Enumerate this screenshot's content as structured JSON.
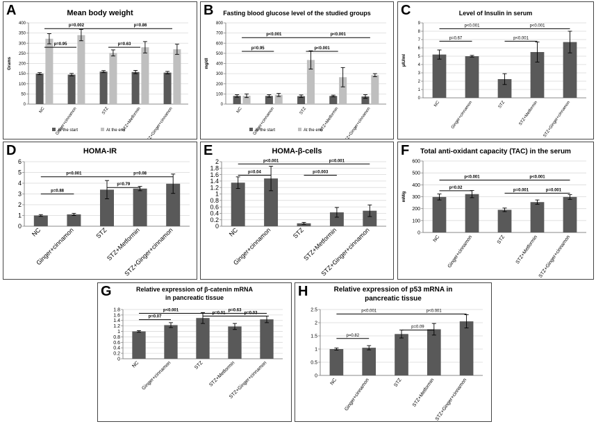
{
  "chart_data": [
    {
      "id": "A",
      "letter": "A",
      "type": "bar",
      "title": "Mean body weight",
      "ylabel": "Grams",
      "categories": [
        "NC",
        "Ginger+cinnamon",
        "STZ",
        "STZ+Metformin",
        "STZ+Ginger+cinnamon"
      ],
      "series": [
        {
          "name": "At the start",
          "color": "#595959",
          "values": [
            150,
            145,
            160,
            158,
            155
          ],
          "errors": [
            5,
            6,
            5,
            8,
            6
          ]
        },
        {
          "name": "At the end",
          "color": "#bfbfbf",
          "values": [
            322,
            340,
            252,
            280,
            270
          ],
          "errors": [
            25,
            28,
            15,
            28,
            25
          ]
        }
      ],
      "ylim": [
        0,
        400
      ],
      "yticks": [
        0,
        50,
        100,
        150,
        200,
        250,
        300,
        350,
        400
      ],
      "legend": [
        "At the start",
        "At the end"
      ],
      "annotations": [
        {
          "text": "p=0.002",
          "from": 0,
          "to": 2,
          "y": 372
        },
        {
          "text": "p=0.86",
          "from": 2,
          "to": 4,
          "y": 372
        },
        {
          "text": "p=0.95",
          "from": 0,
          "to": 1,
          "y": 280
        },
        {
          "text": "p=0.63",
          "from": 2,
          "to": 3,
          "y": 280
        }
      ]
    },
    {
      "id": "B",
      "letter": "B",
      "type": "bar",
      "title": "Fasting blood glucose level of the studied groups",
      "ylabel": "mg/dl",
      "categories": [
        "NC",
        "Ginger+cinnamon",
        "STZ",
        "STZ+Metformin",
        "STZ+Ginger+cinnamon"
      ],
      "series": [
        {
          "name": "At the start",
          "color": "#595959",
          "values": [
            80,
            80,
            78,
            80,
            75
          ],
          "errors": [
            12,
            12,
            12,
            8,
            18
          ]
        },
        {
          "name": "At the end",
          "color": "#bfbfbf",
          "values": [
            82,
            90,
            435,
            265,
            285
          ],
          "errors": [
            18,
            15,
            90,
            95,
            15
          ]
        }
      ],
      "ylim": [
        0,
        800
      ],
      "yticks": [
        0,
        100,
        200,
        300,
        400,
        500,
        600,
        700,
        800
      ],
      "legend": [
        "At the start",
        "At the end"
      ],
      "annotations": [
        {
          "text": "p<0.001",
          "from": 0,
          "to": 2,
          "y": 655
        },
        {
          "text": "p<0.001",
          "from": 2,
          "to": 4,
          "y": 655
        },
        {
          "text": "p=0.95",
          "from": 0,
          "to": 1,
          "y": 520
        },
        {
          "text": "p<0.001",
          "from": 2,
          "to": 3,
          "y": 520
        }
      ]
    },
    {
      "id": "C",
      "letter": "C",
      "type": "bar",
      "title": "Level of Insulin in serum",
      "ylabel": "µIU/ml",
      "categories": [
        "NC",
        "Ginger+cinnamon",
        "STZ",
        "STZ+Metformin",
        "STZ+Ginger+cinnamon"
      ],
      "series": [
        {
          "name": "Insulin",
          "color": "#595959",
          "values": [
            5.2,
            5.0,
            2.25,
            5.5,
            6.7
          ],
          "errors": [
            0.55,
            0.1,
            0.65,
            1.2,
            1.3
          ]
        }
      ],
      "ylim": [
        0,
        9
      ],
      "yticks": [
        0,
        1,
        2,
        3,
        4,
        5,
        6,
        7,
        8,
        9
      ],
      "legend": [],
      "annotations": [
        {
          "text": "p<0.001",
          "from": 0,
          "to": 2,
          "y": 8.3
        },
        {
          "text": "p<0.001",
          "from": 2,
          "to": 4,
          "y": 8.3
        },
        {
          "text": "p=0.67",
          "from": 0,
          "to": 1,
          "y": 6.8
        },
        {
          "text": "p<0.001",
          "from": 2,
          "to": 3,
          "y": 6.8
        }
      ]
    },
    {
      "id": "D",
      "letter": "D",
      "type": "bar",
      "title": "HOMA-IR",
      "ylabel": "",
      "categories": [
        "NC",
        "Ginger+cinnamon",
        "STZ",
        "STZ+Metformin",
        "STZ+Ginger+cinnamon"
      ],
      "series": [
        {
          "name": "HOMA-IR",
          "color": "#595959",
          "values": [
            1.0,
            1.1,
            3.4,
            3.5,
            3.95
          ],
          "errors": [
            0.08,
            0.1,
            0.85,
            0.2,
            0.9
          ]
        }
      ],
      "ylim": [
        0,
        6
      ],
      "yticks": [
        0,
        1,
        2,
        3,
        4,
        5,
        6
      ],
      "legend": [],
      "annotations": [
        {
          "text": "p<0.001",
          "from": 0,
          "to": 2,
          "y": 4.6
        },
        {
          "text": "p=0.08",
          "from": 2,
          "to": 4,
          "y": 4.6
        },
        {
          "text": "p=0.88",
          "from": 0,
          "to": 1,
          "y": 3.0
        },
        {
          "text": "p=0.79",
          "from": 2,
          "to": 3,
          "y": 3.6
        }
      ]
    },
    {
      "id": "E",
      "letter": "E",
      "type": "bar",
      "title": "HOMA-β-cells",
      "ylabel": "",
      "categories": [
        "NC",
        "Ginger+cinnamon",
        "STZ",
        "STZ+Metformin",
        "STZ+Ginger+cinnamon"
      ],
      "series": [
        {
          "name": "HOMA-β-cells",
          "color": "#595959",
          "values": [
            1.35,
            1.48,
            0.09,
            0.43,
            0.48
          ],
          "errors": [
            0.18,
            0.38,
            0.03,
            0.15,
            0.18
          ]
        }
      ],
      "ylim": [
        0,
        2
      ],
      "yticks": [
        0,
        0.2,
        0.4,
        0.6,
        0.8,
        1,
        1.2,
        1.4,
        1.6,
        1.8,
        2
      ],
      "legend": [],
      "annotations": [
        {
          "text": "p<0.001",
          "from": 0,
          "to": 2,
          "y": 1.93
        },
        {
          "text": "p=0.001",
          "from": 2,
          "to": 4,
          "y": 1.93
        },
        {
          "text": "p=0.04",
          "from": 0,
          "to": 1,
          "y": 1.58
        },
        {
          "text": "p=0.003",
          "from": 2,
          "to": 3,
          "y": 1.58
        }
      ]
    },
    {
      "id": "F",
      "letter": "F",
      "type": "bar",
      "title": "Total anti-oxidant capacity (TAC) in the serum",
      "ylabel": "mM/g",
      "categories": [
        "NC",
        "Ginger+cinnamon",
        "STZ",
        "STZ+Metformin",
        "STZ+Ginger+cinnamon"
      ],
      "series": [
        {
          "name": "TAC",
          "color": "#595959",
          "values": [
            298,
            322,
            190,
            255,
            298
          ],
          "errors": [
            25,
            30,
            15,
            18,
            20
          ]
        }
      ],
      "ylim": [
        0,
        600
      ],
      "yticks": [
        0,
        100,
        200,
        300,
        400,
        500,
        600
      ],
      "legend": [],
      "annotations": [
        {
          "text": "p<0.001",
          "from": 0,
          "to": 2,
          "y": 440
        },
        {
          "text": "p<0.001",
          "from": 2,
          "to": 4,
          "y": 440
        },
        {
          "text": "p=0.02",
          "from": 0,
          "to": 1,
          "y": 350
        },
        {
          "text": "p=0.001",
          "from": 2,
          "to": 3,
          "y": 330
        },
        {
          "text": "p=0.001",
          "from": 3,
          "to": 4,
          "y": 330
        }
      ]
    },
    {
      "id": "G",
      "letter": "G",
      "type": "bar",
      "title": "Relative expression of β-catenin mRNA in pancreatic tissue",
      "ylabel": "",
      "categories": [
        "NC",
        "Ginger+cinnamon",
        "STZ",
        "STZ+Metformin",
        "STZ+Ginger+cinnamon"
      ],
      "series": [
        {
          "name": "β-catenin",
          "color": "#595959",
          "values": [
            1.0,
            1.23,
            1.49,
            1.18,
            1.44
          ],
          "errors": [
            0.03,
            0.09,
            0.2,
            0.11,
            0.12
          ]
        }
      ],
      "ylim": [
        0,
        1.8
      ],
      "yticks": [
        0,
        0.2,
        0.4,
        0.6,
        0.8,
        1,
        1.2,
        1.4,
        1.6,
        1.8
      ],
      "legend": [],
      "annotations": [
        {
          "text": "p<0.001",
          "from": 0,
          "to": 2,
          "y": 1.66
        },
        {
          "text": "p=0.63",
          "from": 2,
          "to": 4,
          "y": 1.66
        },
        {
          "text": "p=0.07",
          "from": 0,
          "to": 1,
          "y": 1.43
        },
        {
          "text": "p=0.01",
          "from": 2,
          "to": 3,
          "y": 1.56
        },
        {
          "text": "p=0.03",
          "from": 3,
          "to": 4,
          "y": 1.56
        }
      ]
    },
    {
      "id": "H",
      "letter": "H",
      "type": "bar",
      "title": "Relative expression of p53 mRNA in pancreatic tissue",
      "ylabel": "",
      "categories": [
        "NC",
        "Ginger+cinnamon",
        "STZ",
        "STZ+Metformin",
        "STZ+Ginger+cinnamon"
      ],
      "series": [
        {
          "name": "p53",
          "color": "#595959",
          "values": [
            1.0,
            1.05,
            1.57,
            1.75,
            2.05
          ],
          "errors": [
            0.04,
            0.08,
            0.15,
            0.22,
            0.25
          ]
        }
      ],
      "ylim": [
        0,
        2.5
      ],
      "yticks": [
        0,
        0.5,
        1,
        1.5,
        2,
        2.5
      ],
      "legend": [],
      "annotations": [
        {
          "text": "p<0.001",
          "from": 0,
          "to": 2,
          "y": 2.33
        },
        {
          "text": "p<0.001",
          "from": 2,
          "to": 4,
          "y": 2.33
        },
        {
          "text": "p=0.82",
          "from": 0,
          "to": 1,
          "y": 1.4
        },
        {
          "text": "p=0.09",
          "from": 2,
          "to": 3,
          "y": 1.72
        }
      ]
    }
  ]
}
